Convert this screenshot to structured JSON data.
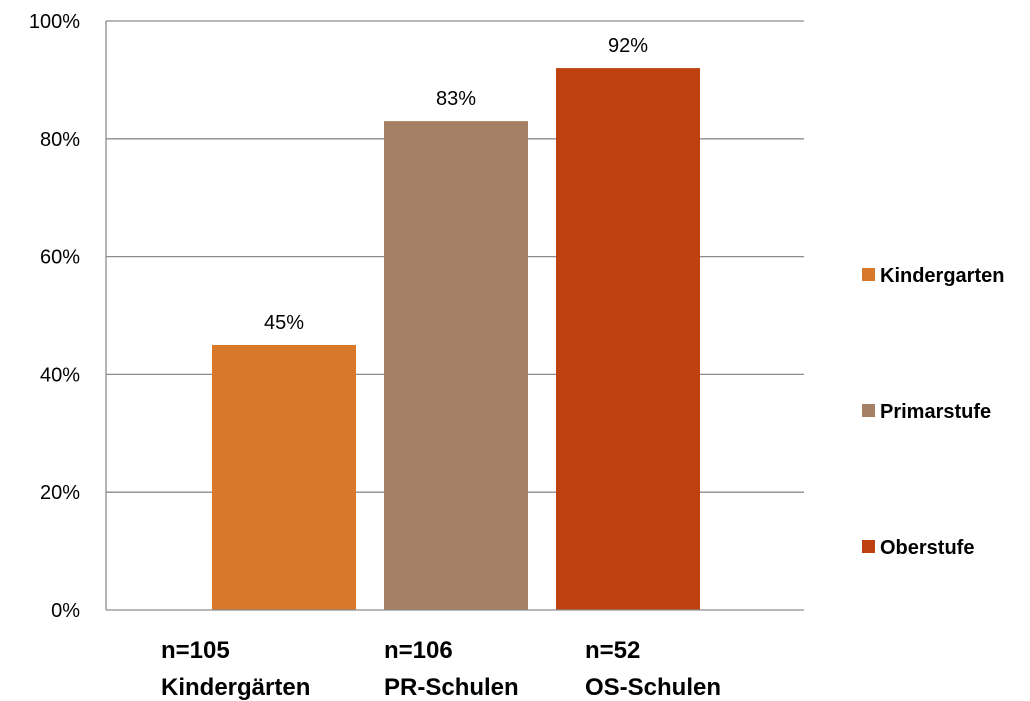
{
  "chart_data": {
    "type": "bar",
    "categories": [
      {
        "line1": "n=105",
        "line2": "Kindergärten"
      },
      {
        "line1": "n=106",
        "line2": "PR-Schulen"
      },
      {
        "line1": "n=52",
        "line2": "OS-Schulen"
      }
    ],
    "series": [
      {
        "name": "Kindergarten",
        "color": "#D8782B",
        "value": 45,
        "label": "45%"
      },
      {
        "name": "Primarstufe",
        "color": "#A58064",
        "value": 83,
        "label": "83%"
      },
      {
        "name": "Oberstufe",
        "color": "#BF410F",
        "value": 92,
        "label": "92%"
      }
    ],
    "y_ticks": [
      {
        "value": 0,
        "label": "0%"
      },
      {
        "value": 20,
        "label": "20%"
      },
      {
        "value": 40,
        "label": "40%"
      },
      {
        "value": 60,
        "label": "60%"
      },
      {
        "value": 80,
        "label": "80%"
      },
      {
        "value": 100,
        "label": "100%"
      }
    ],
    "ylim": [
      0,
      100
    ],
    "grid": true,
    "legend_position": "right",
    "axis_color": "#8C8C8C"
  }
}
